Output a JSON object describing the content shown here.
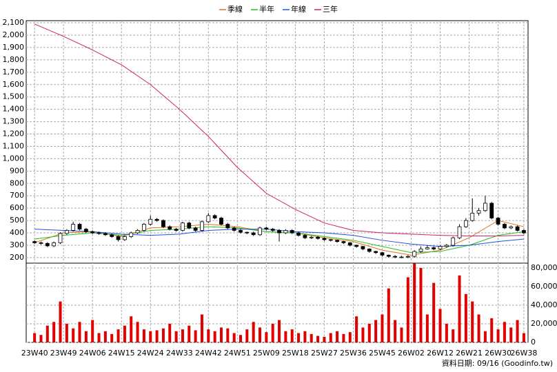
{
  "chart_data": {
    "type": "candlestick",
    "legend": [
      "季線",
      "半年",
      "年線",
      "三年"
    ],
    "footer": "資料日期: 09/16 (Goodinfo.tw)",
    "xlim": [
      -2.6,
      153.3
    ],
    "xticks": [
      {
        "value": 0,
        "label": "23W40"
      },
      {
        "value": 9,
        "label": "23W49"
      },
      {
        "value": 18,
        "label": "24W06"
      },
      {
        "value": 27,
        "label": "24W15"
      },
      {
        "value": 36,
        "label": "24W24"
      },
      {
        "value": 45,
        "label": "24W33"
      },
      {
        "value": 54,
        "label": "24W42"
      },
      {
        "value": 63,
        "label": "24W51"
      },
      {
        "value": 72,
        "label": "25W09"
      },
      {
        "value": 81,
        "label": "25W18"
      },
      {
        "value": 90,
        "label": "25W27"
      },
      {
        "value": 99,
        "label": "25W36"
      },
      {
        "value": 108,
        "label": "25W45"
      },
      {
        "value": 117,
        "label": "26W02"
      },
      {
        "value": 126,
        "label": "26W12"
      },
      {
        "value": 135,
        "label": "26W21"
      },
      {
        "value": 144,
        "label": "26W30"
      },
      {
        "value": 152,
        "label": "26W38"
      }
    ],
    "ylim": [
      155,
      2117
    ],
    "yticks": [
      200,
      300,
      400,
      500,
      600,
      700,
      800,
      900,
      {
        "value": 1000,
        "label": "1,000"
      },
      {
        "value": 1100,
        "label": "1,100"
      },
      {
        "value": 1200,
        "label": "1,200"
      },
      {
        "value": 1300,
        "label": "1,300"
      },
      {
        "value": 1400,
        "label": "1,400"
      },
      {
        "value": 1500,
        "label": "1,500"
      },
      {
        "value": 1600,
        "label": "1,600"
      },
      {
        "value": 1700,
        "label": "1,700"
      },
      {
        "value": 1800,
        "label": "1,800"
      },
      {
        "value": 1900,
        "label": "1,900"
      },
      {
        "value": 2000,
        "label": "2,000"
      },
      {
        "value": 2100,
        "label": "2,100"
      }
    ],
    "y2lim": [
      0,
      85185
    ],
    "y2ticks": [
      0,
      {
        "value": 20000,
        "label": "20,000"
      },
      {
        "value": 40000,
        "label": "40,000"
      },
      {
        "value": 60000,
        "label": "60,000"
      },
      {
        "value": 80000,
        "label": "80,000"
      }
    ],
    "grid": true,
    "x": [
      0,
      2,
      4,
      6,
      8,
      10,
      12,
      14,
      16,
      18,
      20,
      22,
      24,
      26,
      28,
      30,
      32,
      34,
      36,
      38,
      40,
      42,
      44,
      46,
      48,
      50,
      52,
      54,
      56,
      58,
      60,
      62,
      64,
      66,
      68,
      70,
      72,
      74,
      76,
      78,
      80,
      82,
      84,
      86,
      88,
      90,
      92,
      94,
      96,
      98,
      100,
      102,
      104,
      106,
      108,
      110,
      112,
      114,
      116,
      118,
      120,
      122,
      124,
      126,
      128,
      130,
      132,
      134,
      136,
      138,
      140,
      142,
      144,
      146,
      148,
      150,
      152
    ],
    "candles": [
      [
        330,
        340,
        310,
        320
      ],
      [
        320,
        330,
        305,
        315
      ],
      [
        315,
        325,
        285,
        295
      ],
      [
        295,
        330,
        285,
        320
      ],
      [
        320,
        405,
        310,
        395
      ],
      [
        395,
        430,
        385,
        420
      ],
      [
        420,
        490,
        410,
        470
      ],
      [
        470,
        480,
        420,
        430
      ],
      [
        430,
        440,
        400,
        410
      ],
      [
        410,
        420,
        390,
        400
      ],
      [
        400,
        410,
        385,
        395
      ],
      [
        395,
        405,
        375,
        385
      ],
      [
        385,
        395,
        360,
        370
      ],
      [
        370,
        380,
        330,
        345
      ],
      [
        345,
        380,
        335,
        370
      ],
      [
        370,
        410,
        360,
        400
      ],
      [
        400,
        430,
        390,
        420
      ],
      [
        420,
        480,
        410,
        470
      ],
      [
        470,
        540,
        460,
        510
      ],
      [
        510,
        520,
        490,
        500
      ],
      [
        500,
        510,
        440,
        450
      ],
      [
        450,
        460,
        420,
        430
      ],
      [
        430,
        440,
        410,
        420
      ],
      [
        420,
        490,
        410,
        480
      ],
      [
        480,
        490,
        430,
        440
      ],
      [
        440,
        450,
        410,
        420
      ],
      [
        420,
        500,
        410,
        490
      ],
      [
        490,
        560,
        480,
        540
      ],
      [
        540,
        550,
        510,
        520
      ],
      [
        520,
        530,
        460,
        470
      ],
      [
        470,
        480,
        430,
        440
      ],
      [
        440,
        450,
        410,
        420
      ],
      [
        420,
        430,
        395,
        405
      ],
      [
        405,
        410,
        390,
        400
      ],
      [
        400,
        410,
        375,
        385
      ],
      [
        385,
        450,
        375,
        440
      ],
      [
        440,
        450,
        420,
        430
      ],
      [
        430,
        440,
        410,
        420
      ],
      [
        420,
        430,
        330,
        400
      ],
      [
        400,
        430,
        390,
        420
      ],
      [
        420,
        430,
        390,
        400
      ],
      [
        400,
        410,
        370,
        380
      ],
      [
        380,
        390,
        350,
        360
      ],
      [
        360,
        375,
        350,
        365
      ],
      [
        365,
        375,
        345,
        355
      ],
      [
        355,
        365,
        335,
        345
      ],
      [
        345,
        350,
        330,
        340
      ],
      [
        340,
        345,
        320,
        330
      ],
      [
        330,
        335,
        310,
        320
      ],
      [
        320,
        325,
        290,
        300
      ],
      [
        300,
        305,
        280,
        290
      ],
      [
        290,
        295,
        260,
        270
      ],
      [
        270,
        275,
        240,
        250
      ],
      [
        250,
        255,
        230,
        240
      ],
      [
        240,
        245,
        210,
        220
      ],
      [
        220,
        225,
        200,
        210
      ],
      [
        210,
        220,
        195,
        205
      ],
      [
        205,
        215,
        195,
        205
      ],
      [
        205,
        220,
        195,
        210
      ],
      [
        210,
        260,
        200,
        250
      ],
      [
        250,
        290,
        240,
        270
      ],
      [
        270,
        300,
        265,
        280
      ],
      [
        280,
        290,
        260,
        270
      ],
      [
        270,
        300,
        260,
        290
      ],
      [
        290,
        310,
        280,
        300
      ],
      [
        300,
        370,
        290,
        360
      ],
      [
        360,
        470,
        350,
        450
      ],
      [
        450,
        520,
        440,
        500
      ],
      [
        500,
        680,
        490,
        560
      ],
      [
        560,
        600,
        540,
        580
      ],
      [
        580,
        700,
        570,
        640
      ],
      [
        640,
        650,
        510,
        520
      ],
      [
        520,
        530,
        460,
        470
      ],
      [
        470,
        480,
        430,
        440
      ],
      [
        440,
        460,
        430,
        450
      ],
      [
        450,
        460,
        410,
        420
      ],
      [
        420,
        430,
        390,
        400
      ]
    ],
    "volume": {
      "color": "#e00000",
      "values": [
        10000,
        8000,
        18000,
        22000,
        44000,
        20000,
        15000,
        22000,
        12000,
        24000,
        10000,
        12000,
        9000,
        14000,
        18000,
        28000,
        22000,
        14000,
        12000,
        13000,
        15000,
        20000,
        12000,
        14000,
        18000,
        13000,
        30000,
        14000,
        12000,
        16000,
        15000,
        10000,
        8000,
        14000,
        22000,
        16000,
        11000,
        20000,
        24000,
        12000,
        14000,
        10000,
        12000,
        9000,
        7000,
        6000,
        10000,
        12000,
        9000,
        11000,
        28000,
        16000,
        20000,
        24000,
        30000,
        58000,
        24000,
        16000,
        70000,
        85000,
        80000,
        30000,
        64000,
        36000,
        20000,
        14000,
        72000,
        52000,
        44000,
        30000,
        12000,
        26000,
        14000,
        22000,
        16000,
        24000,
        10000
      ]
    },
    "series": [
      {
        "name": "季線",
        "color": "#e07020",
        "x": [
          0,
          9,
          18,
          27,
          36,
          45,
          54,
          63,
          72,
          81,
          90,
          99,
          108,
          117,
          126,
          135,
          144,
          152
        ],
        "values": [
          320,
          400,
          410,
          370,
          440,
          450,
          470,
          450,
          410,
          400,
          360,
          330,
          260,
          220,
          260,
          360,
          500,
          450
        ]
      },
      {
        "name": "半年",
        "color": "#20c020",
        "x": [
          0,
          9,
          18,
          27,
          36,
          45,
          54,
          63,
          72,
          81,
          90,
          99,
          108,
          117,
          126,
          135,
          144,
          152
        ],
        "values": [
          350,
          380,
          400,
          380,
          420,
          430,
          450,
          440,
          410,
          400,
          370,
          340,
          290,
          240,
          250,
          300,
          380,
          410
        ]
      },
      {
        "name": "年線",
        "color": "#2050e0",
        "x": [
          0,
          9,
          18,
          27,
          36,
          45,
          54,
          63,
          72,
          81,
          90,
          99,
          108,
          117,
          126,
          135,
          144,
          152
        ],
        "values": [
          430,
          420,
          410,
          390,
          380,
          390,
          420,
          430,
          430,
          410,
          400,
          380,
          340,
          310,
          290,
          300,
          330,
          350
        ]
      },
      {
        "name": "三年",
        "color": "#d0206a",
        "x": [
          0,
          9,
          18,
          27,
          36,
          45,
          54,
          63,
          72,
          81,
          90,
          99,
          108,
          117,
          126,
          135,
          144,
          152
        ],
        "values": [
          2090,
          1990,
          1880,
          1760,
          1600,
          1400,
          1180,
          930,
          720,
          590,
          480,
          420,
          400,
          390,
          380,
          375,
          375,
          380
        ]
      }
    ]
  }
}
